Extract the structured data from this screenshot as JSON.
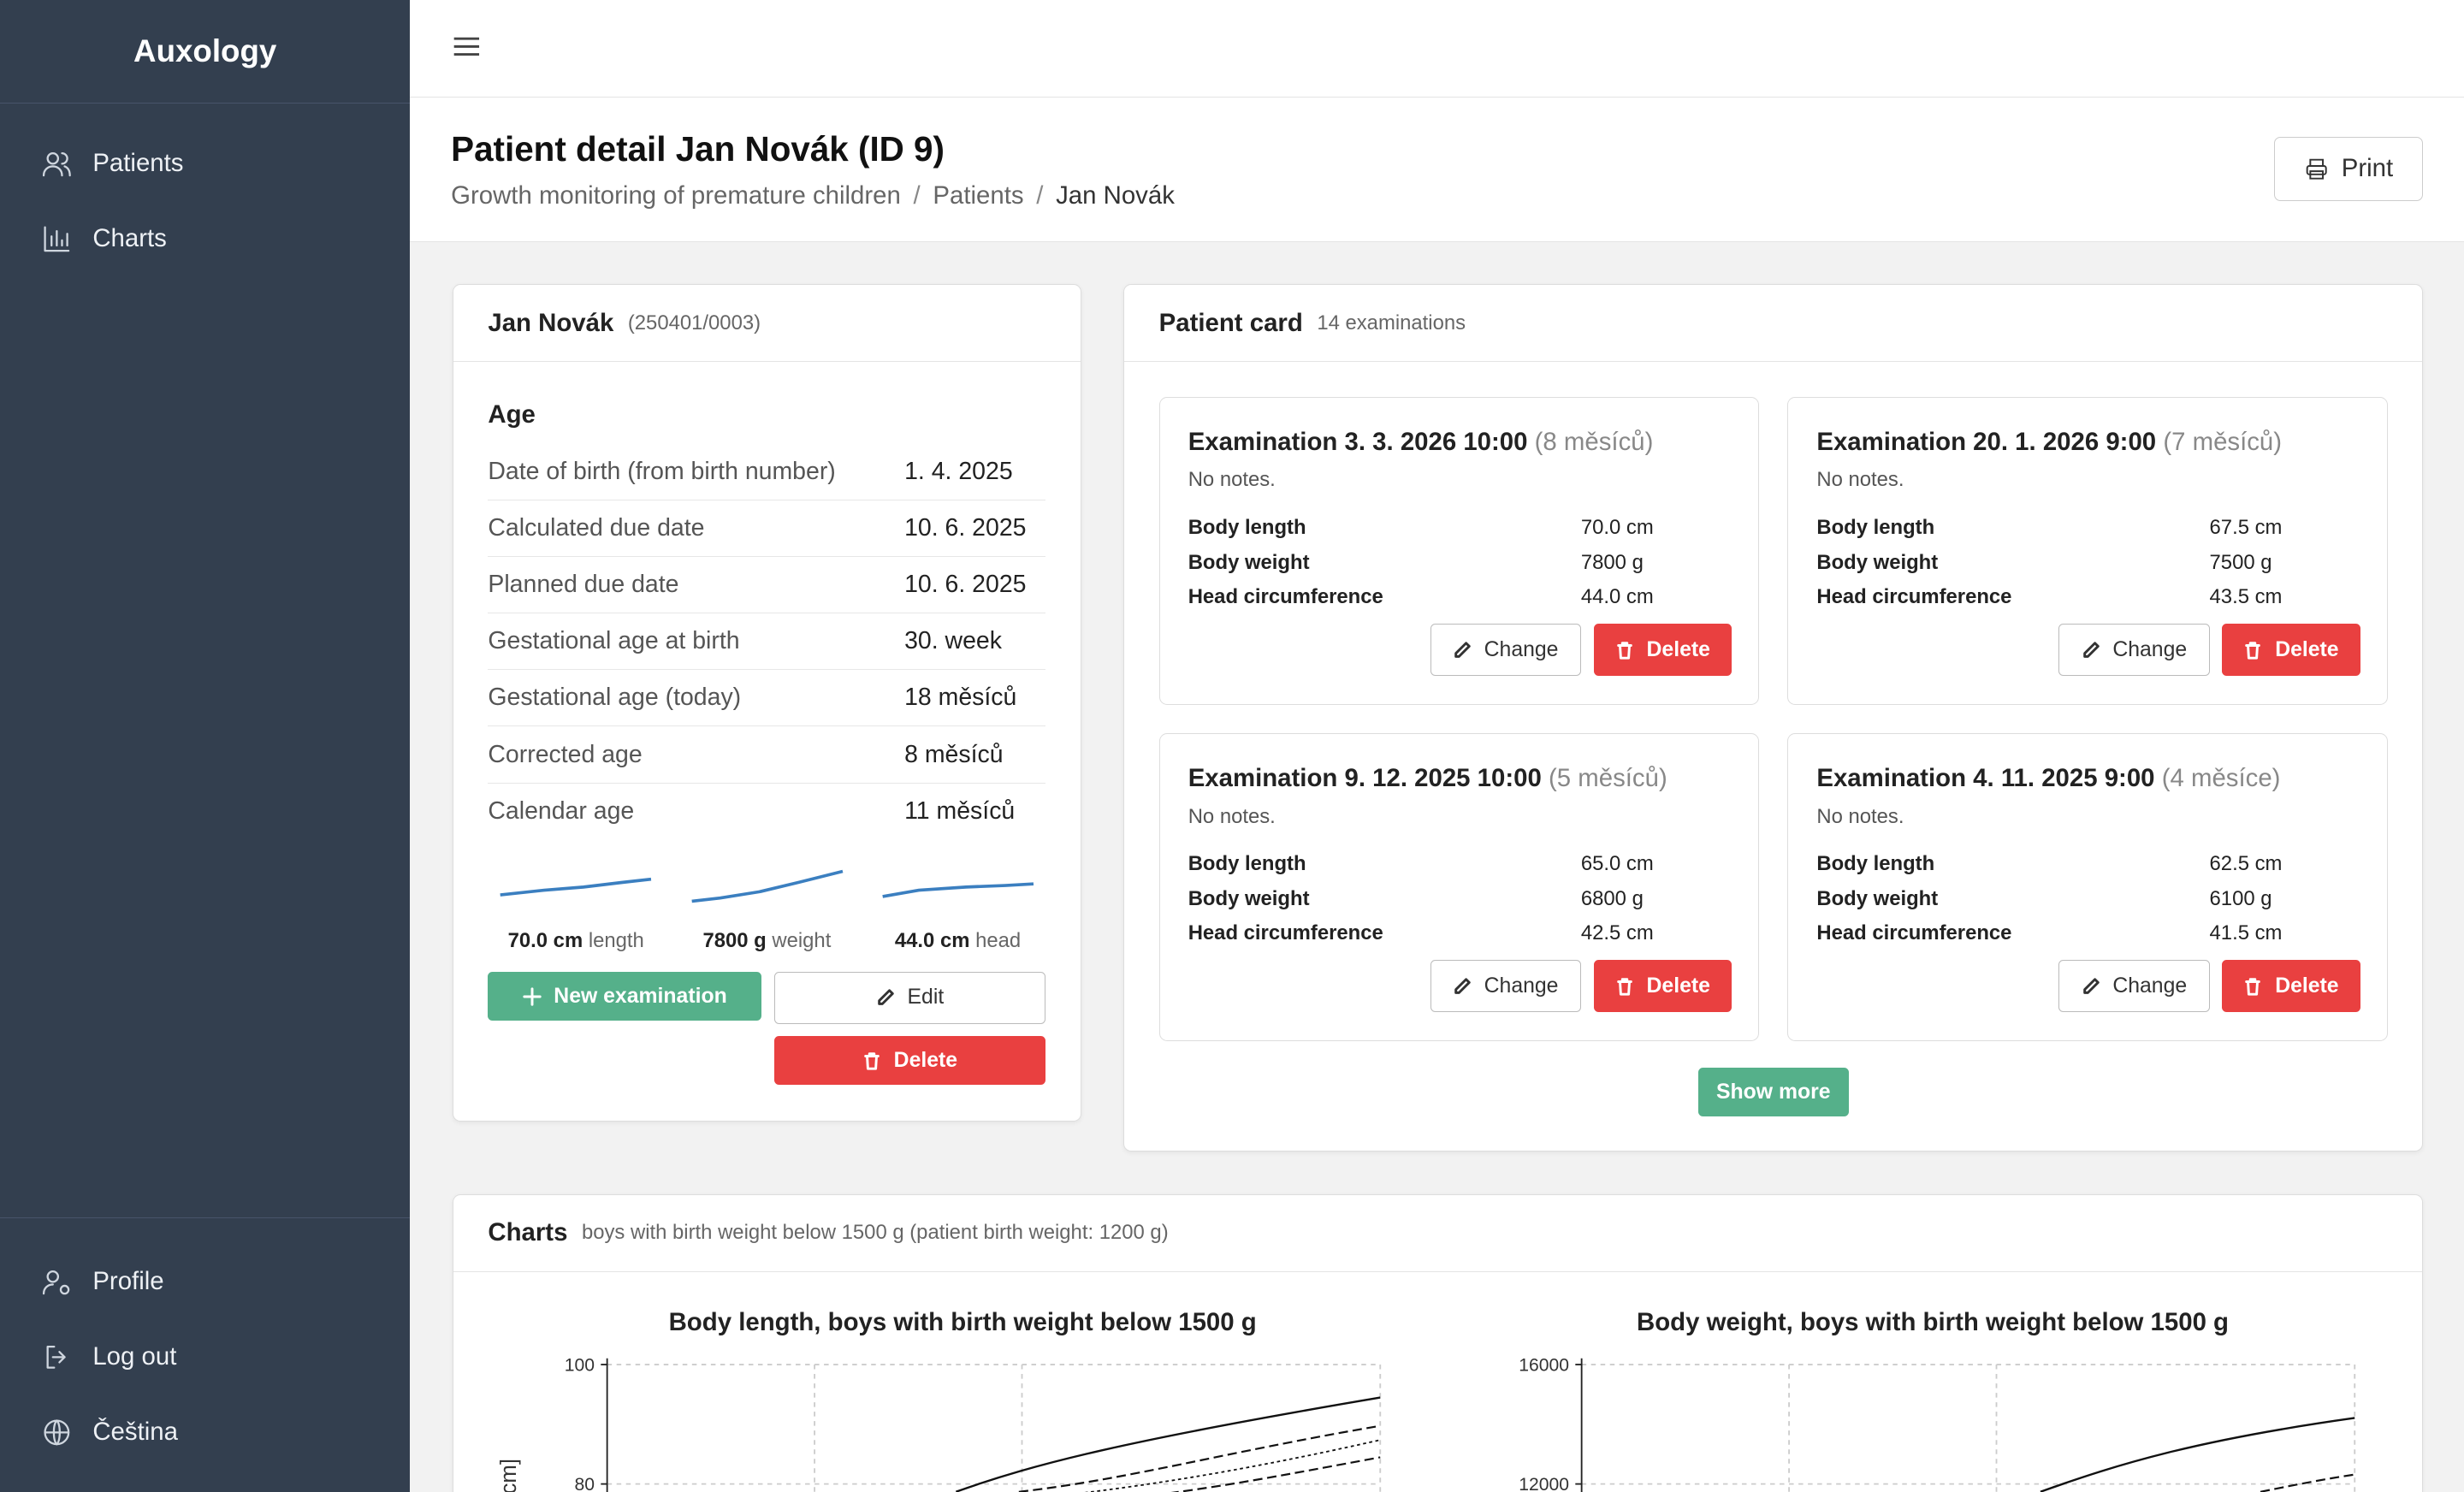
{
  "app": {
    "name": "Auxology"
  },
  "sidebar": {
    "items": [
      {
        "label": "Patients",
        "icon": "users-icon"
      },
      {
        "label": "Charts",
        "icon": "bar-chart-icon"
      }
    ],
    "bottom": [
      {
        "label": "Profile",
        "icon": "user-gear-icon"
      },
      {
        "label": "Log out",
        "icon": "logout-icon"
      },
      {
        "label": "Čeština",
        "icon": "globe-icon"
      }
    ]
  },
  "header": {
    "title": "Patient detail Jan Novák (ID 9)",
    "breadcrumb": [
      "Growth monitoring of premature children",
      "Patients",
      "Jan Novák"
    ],
    "breadcrumb_sep": "/",
    "print_label": "Print"
  },
  "patient": {
    "name": "Jan Novák",
    "birth_number": "(250401/0003)",
    "age_title": "Age",
    "rows": [
      {
        "k": "Date of birth (from birth number)",
        "v": "1. 4. 2025"
      },
      {
        "k": "Calculated due date",
        "v": "10. 6. 2025"
      },
      {
        "k": "Planned due date",
        "v": "10. 6. 2025"
      },
      {
        "k": "Gestational age at birth",
        "v": "30. week"
      },
      {
        "k": "Gestational age (today)",
        "v": "18 měsíců"
      },
      {
        "k": "Corrected age",
        "v": "8 měsíců"
      },
      {
        "k": "Calendar age",
        "v": "11 měsíců"
      }
    ],
    "sparklines": [
      {
        "value": "70.0 cm",
        "label": "length"
      },
      {
        "value": "7800 g",
        "label": "weight"
      },
      {
        "value": "44.0 cm",
        "label": "head"
      }
    ],
    "new_exam_label": "New examination",
    "edit_label": "Edit",
    "delete_label": "Delete"
  },
  "card": {
    "title": "Patient card",
    "count": "14 examinations",
    "show_more": "Show more",
    "change_label": "Change",
    "delete_label": "Delete",
    "measure_labels": [
      "Body length",
      "Body weight",
      "Head circumference"
    ],
    "exams": [
      {
        "title": "Examination 3. 3. 2026 10:00",
        "age": "(8 měsíců)",
        "notes": "No notes.",
        "values": [
          "70.0 cm",
          "7800 g",
          "44.0 cm"
        ]
      },
      {
        "title": "Examination 20. 1. 2026 9:00",
        "age": "(7 měsíců)",
        "notes": "No notes.",
        "values": [
          "67.5 cm",
          "7500 g",
          "43.5 cm"
        ]
      },
      {
        "title": "Examination 9. 12. 2025 10:00",
        "age": "(5 měsíců)",
        "notes": "No notes.",
        "values": [
          "65.0 cm",
          "6800 g",
          "42.5 cm"
        ]
      },
      {
        "title": "Examination 4. 11. 2025 9:00",
        "age": "(4 měsíce)",
        "notes": "No notes.",
        "values": [
          "62.5 cm",
          "6100 g",
          "41.5 cm"
        ]
      }
    ]
  },
  "charts_section": {
    "title": "Charts",
    "subtitle": "boys with birth weight below 1500 g (patient birth weight: 1200 g)"
  },
  "chart_data": [
    {
      "type": "line",
      "title": "Body length, boys with birth weight below 1500 g",
      "ylabel": "h [cm]",
      "yticks": [
        100,
        80
      ],
      "grid": true
    },
    {
      "type": "line",
      "title": "Body weight, boys with birth weight below 1500 g",
      "ylabel": "",
      "yticks": [
        16000,
        12000
      ],
      "grid": true
    }
  ]
}
